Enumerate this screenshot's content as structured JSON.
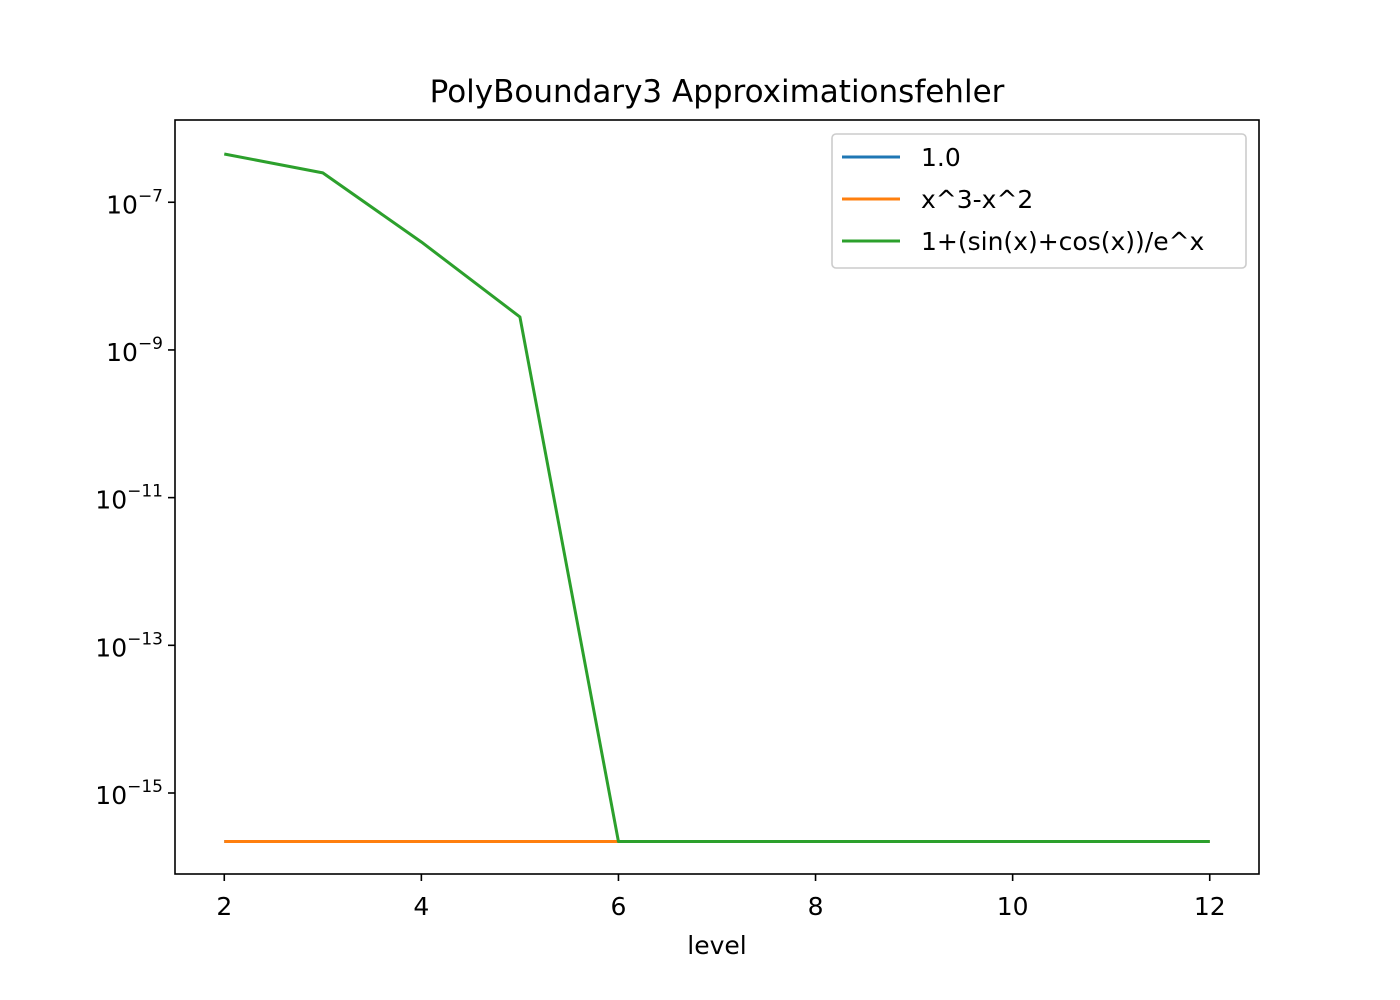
{
  "chart_data": {
    "type": "line",
    "title": "PolyBoundary3 Approximationsfehler",
    "xlabel": "level",
    "ylabel": "",
    "x_scale": "linear",
    "y_scale": "log",
    "xlim": [
      1.5,
      12.5
    ],
    "ylim": [
      8e-17,
      1.3e-06
    ],
    "x_ticks": [
      {
        "value": 2,
        "label": "2"
      },
      {
        "value": 4,
        "label": "4"
      },
      {
        "value": 6,
        "label": "6"
      },
      {
        "value": 8,
        "label": "8"
      },
      {
        "value": 10,
        "label": "10"
      },
      {
        "value": 12,
        "label": "12"
      }
    ],
    "y_ticks": [
      {
        "value": 1e-07,
        "base": "10",
        "exponent": "−7"
      },
      {
        "value": 1e-09,
        "base": "10",
        "exponent": "−9"
      },
      {
        "value": 1e-11,
        "base": "10",
        "exponent": "−11"
      },
      {
        "value": 1e-13,
        "base": "10",
        "exponent": "−13"
      },
      {
        "value": 1e-15,
        "base": "10",
        "exponent": "−15"
      }
    ],
    "grid": false,
    "legend_position": "top-right",
    "x": [
      2,
      3,
      4,
      5,
      6,
      7,
      8,
      9,
      10,
      11,
      12
    ],
    "series": [
      {
        "name": "1.0",
        "color": "#1f77b4",
        "values": [
          2.2e-16,
          2.2e-16,
          2.2e-16,
          2.2e-16,
          2.2e-16,
          2.2e-16,
          2.2e-16,
          2.2e-16,
          2.2e-16,
          2.2e-16,
          2.2e-16
        ]
      },
      {
        "name": "x^3-x^2",
        "color": "#ff7f0e",
        "values": [
          2.2e-16,
          2.2e-16,
          2.2e-16,
          2.2e-16,
          2.2e-16,
          2.2e-16,
          2.2e-16,
          2.2e-16,
          2.2e-16,
          2.2e-16,
          2.2e-16
        ]
      },
      {
        "name": "1+(sin(x)+cos(x))/e^x",
        "color": "#2ca02c",
        "values": [
          4.5e-07,
          2.5e-07,
          2.9e-08,
          2.8e-09,
          2.2e-16,
          2.2e-16,
          2.2e-16,
          2.2e-16,
          2.2e-16,
          2.2e-16,
          2.2e-16
        ]
      }
    ]
  }
}
